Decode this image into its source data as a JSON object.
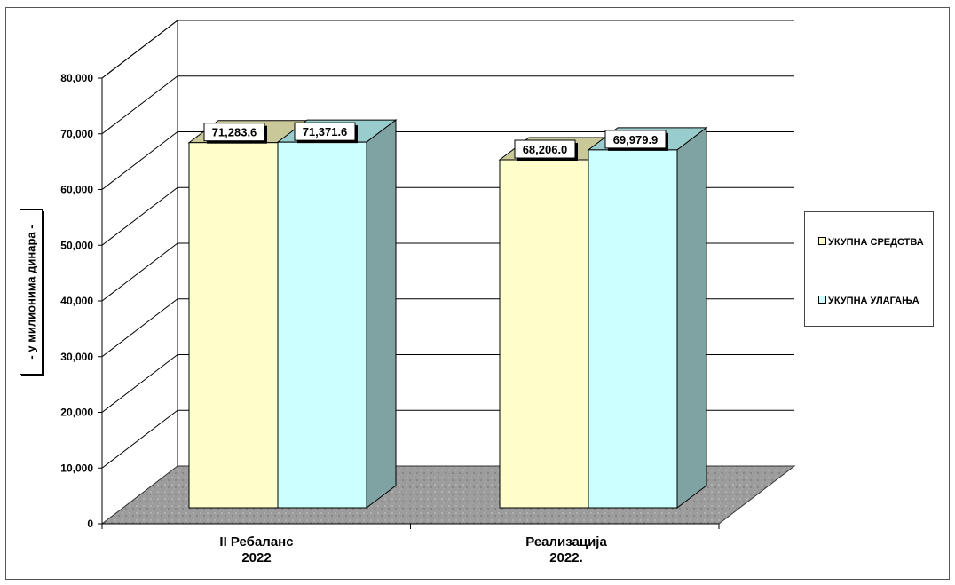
{
  "chart_data": {
    "type": "bar",
    "categories": [
      "II Ребаланс\n2022",
      "Реализација\n2022."
    ],
    "series": [
      {
        "name": "УКУПНА СРЕДСТВА",
        "values": [
          71283.6,
          68206.0
        ],
        "color": "#FFFFCC"
      },
      {
        "name": "УКУПНА УЛАГАЊА",
        "values": [
          71371.6,
          69979.9
        ],
        "color": "#CCFFFF"
      }
    ],
    "data_labels": [
      [
        "71,283.6",
        "71,371.6"
      ],
      [
        "68,206.0",
        "69,979.9"
      ]
    ],
    "ylabel": "- у милионима динара -",
    "ylim": [
      0,
      80000
    ],
    "yticks": [
      "0",
      "10,000",
      "20,000",
      "30,000",
      "40,000",
      "50,000",
      "60,000",
      "70,000",
      "80,000"
    ],
    "grid": true,
    "legend": "right",
    "style": "3d-clustered-column"
  }
}
